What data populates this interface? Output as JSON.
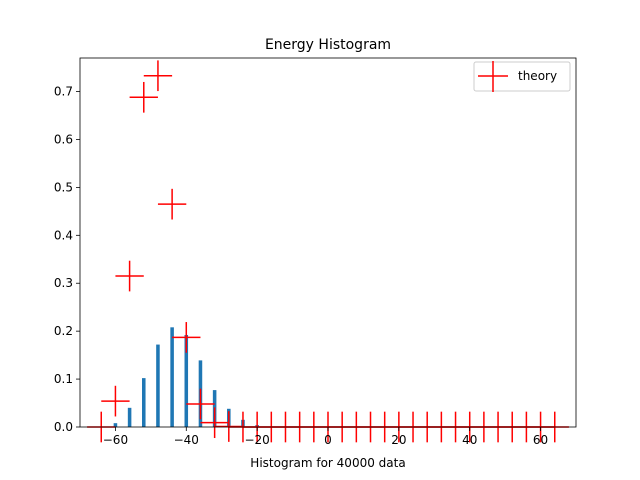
{
  "chart_data": {
    "type": "bar",
    "title": "Energy Histogram",
    "xlabel": "Histogram for 40000 data",
    "ylabel": "",
    "xlim": [
      -70,
      70
    ],
    "ylim": [
      0,
      0.77
    ],
    "xticks": [
      -60,
      -40,
      -20,
      0,
      20,
      40,
      60
    ],
    "yticks": [
      0.0,
      0.1,
      0.2,
      0.3,
      0.4,
      0.5,
      0.6,
      0.7
    ],
    "ytick_labels": [
      "0.0",
      "0.1",
      "0.2",
      "0.3",
      "0.4",
      "0.5",
      "0.6",
      "0.7"
    ],
    "grid": false,
    "legend_position": "top-right",
    "bar_width": 1.0,
    "series": [
      {
        "kind": "bar",
        "color": "#1f77b4",
        "x": [
          -60,
          -56,
          -52,
          -48,
          -44,
          -40,
          -36,
          -32,
          -28,
          -24,
          -20,
          -16,
          -12,
          -8,
          -4,
          0,
          4,
          8,
          12,
          16,
          20,
          24,
          28,
          32,
          36,
          40,
          44,
          48,
          52,
          56,
          60,
          64
        ],
        "values": [
          0.008,
          0.04,
          0.102,
          0.172,
          0.208,
          0.192,
          0.139,
          0.077,
          0.038,
          0.015,
          0.004,
          0.001,
          0,
          0,
          0,
          0,
          0,
          0,
          0,
          0,
          0,
          0,
          0,
          0,
          0,
          0,
          0,
          0,
          0,
          0,
          0,
          0
        ]
      },
      {
        "name": "theory",
        "kind": "errorbar-cross",
        "color": "#ff0000",
        "x": [
          -64,
          -60,
          -56,
          -52,
          -48,
          -44,
          -40,
          -36,
          -32,
          -28,
          -24,
          -20,
          -16,
          -12,
          -8,
          -4,
          0,
          4,
          8,
          12,
          16,
          20,
          24,
          28,
          32,
          36,
          40,
          44,
          48,
          52,
          56,
          60,
          64
        ],
        "values": [
          0.0,
          0.054,
          0.315,
          0.688,
          0.733,
          0.465,
          0.187,
          0.048,
          0.009,
          0.001,
          0,
          0,
          0,
          0,
          0,
          0,
          0,
          0,
          0,
          0,
          0,
          0,
          0,
          0,
          0,
          0,
          0,
          0,
          0,
          0,
          0,
          0,
          0
        ],
        "xerr": 4.0,
        "yerr": 0.032
      }
    ]
  }
}
